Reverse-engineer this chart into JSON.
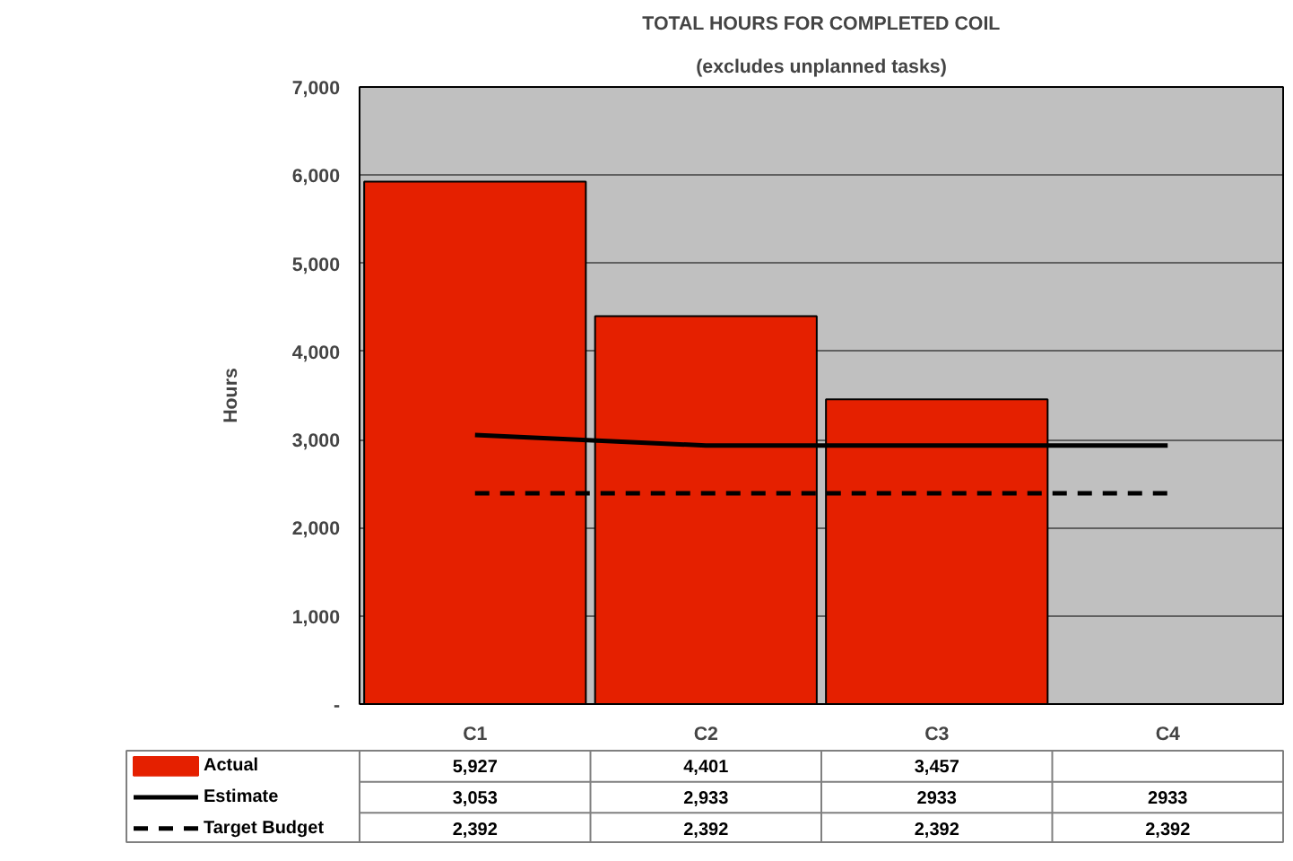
{
  "chart_data": {
    "type": "bar",
    "title": "TOTAL HOURS FOR COMPLETED COIL",
    "subtitle": "(excludes unplanned tasks)",
    "ylabel": "Hours",
    "categories": [
      "C1",
      "C2",
      "C3",
      "C4"
    ],
    "series": [
      {
        "name": "Actual",
        "color": "#e52000",
        "values": [
          5927,
          4401,
          3457,
          null
        ],
        "value_labels": [
          "5,927",
          "4,401",
          "3,457",
          null
        ]
      },
      {
        "name": "Estimate",
        "type": "line",
        "color": "#000000",
        "line_style": "solid",
        "values": [
          3053,
          2933,
          2933,
          2933
        ],
        "value_labels": [
          "3,053",
          "2,933",
          "2933",
          "2933"
        ]
      },
      {
        "name": "Target Budget",
        "type": "line",
        "color": "#000000",
        "line_style": "dashed",
        "values": [
          2392,
          2392,
          2392,
          2392
        ],
        "value_labels": [
          "2,392",
          "2,392",
          "2,392",
          "2,392"
        ]
      }
    ],
    "ylim": [
      0,
      7000
    ],
    "yticks": [
      {
        "value": 0,
        "label": "-"
      },
      {
        "value": 1000,
        "label": "1,000"
      },
      {
        "value": 2000,
        "label": "2,000"
      },
      {
        "value": 3000,
        "label": "3,000"
      },
      {
        "value": 4000,
        "label": "4,000"
      },
      {
        "value": 5000,
        "label": "5,000"
      },
      {
        "value": 6000,
        "label": "6,000"
      },
      {
        "value": 7000,
        "label": "7,000"
      }
    ],
    "grid": "y",
    "legend": "bottom"
  }
}
